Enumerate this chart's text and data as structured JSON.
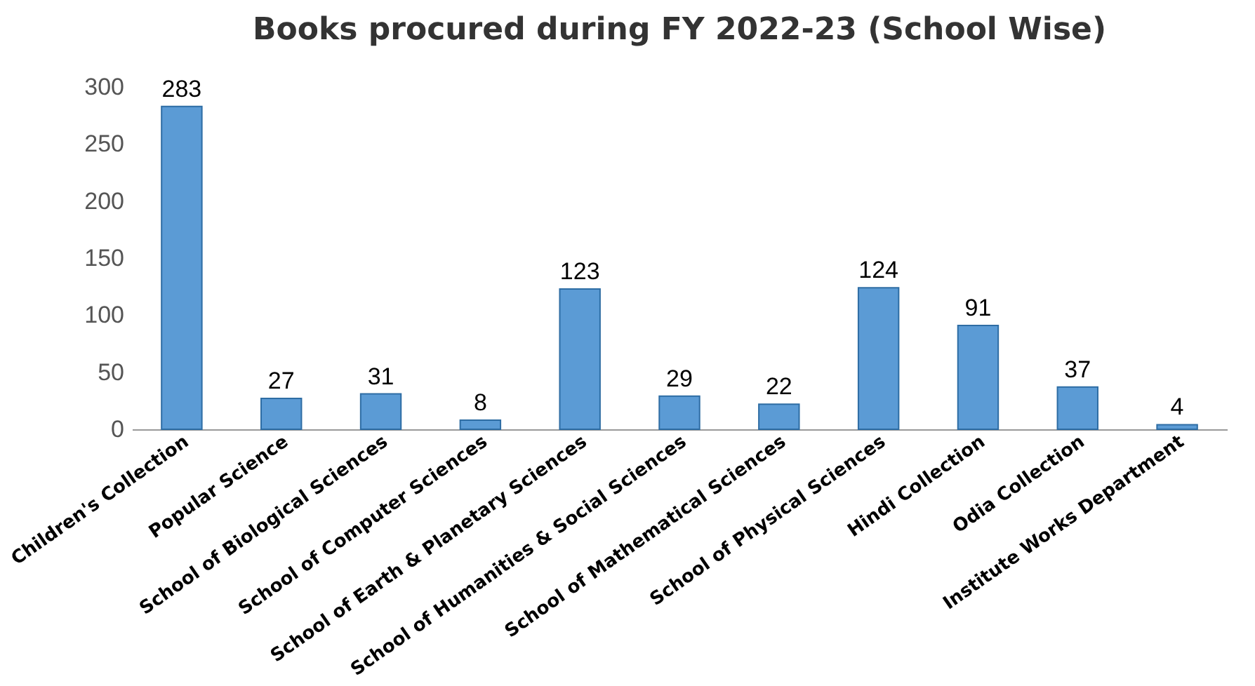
{
  "chart_data": {
    "type": "bar",
    "title": "Books procured during FY 2022-23 (School Wise)",
    "categories": [
      "Children's Collection",
      "Popular Science",
      "School of Biological Sciences",
      "School of Computer Sciences",
      "School of Earth & Planetary Sciences",
      "School of Humanities & Social Sciences",
      "School of Mathematical Sciences",
      "School of Physical Sciences",
      "Hindi Collection",
      "Odia Collection",
      "Institute Works Department"
    ],
    "values": [
      283,
      27,
      31,
      8,
      123,
      29,
      22,
      124,
      91,
      37,
      4
    ],
    "color": "#5b9bd5",
    "ylim": [
      0,
      300
    ],
    "yticks": [
      0,
      50,
      100,
      150,
      200,
      250,
      300
    ],
    "data_labels": true,
    "grid": false
  }
}
